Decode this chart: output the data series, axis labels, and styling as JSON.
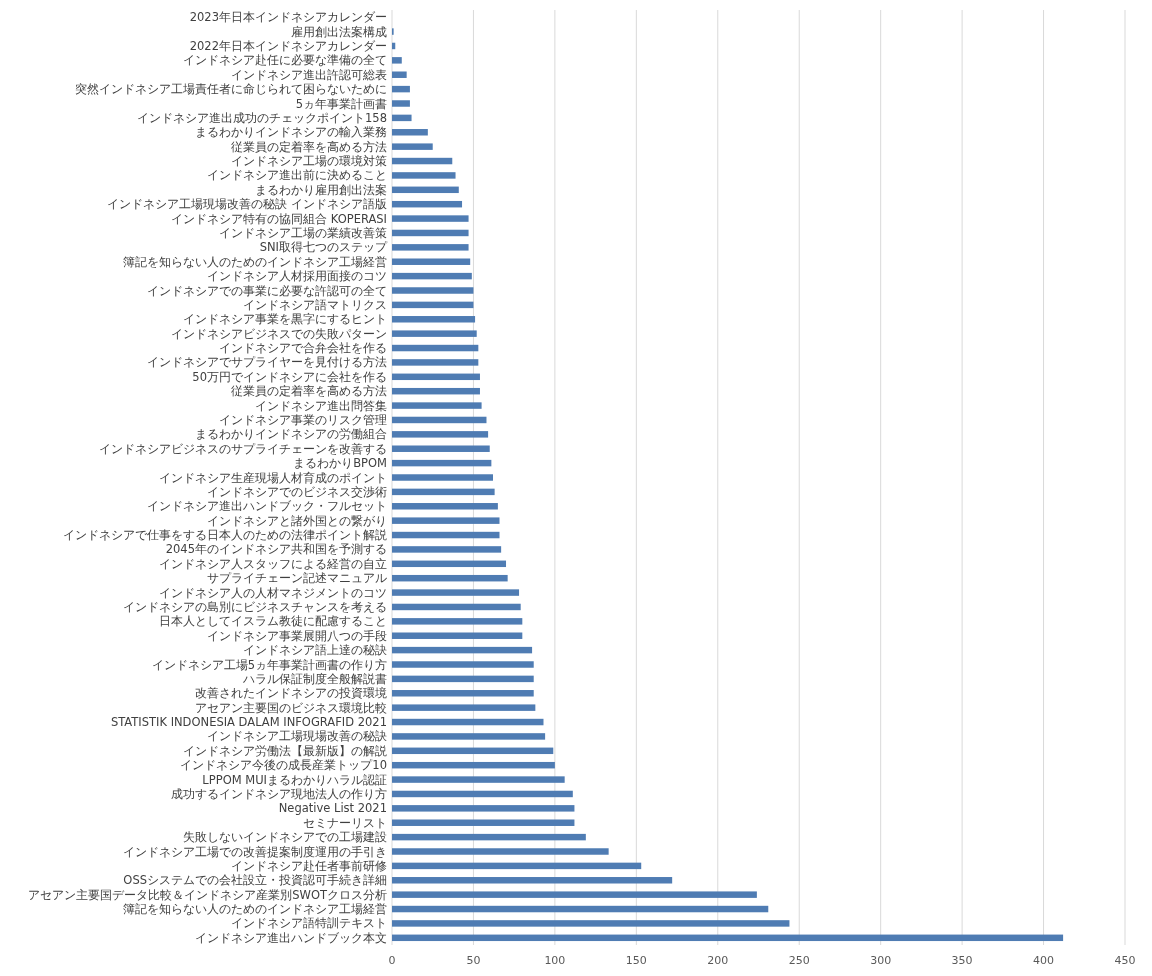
{
  "chart_data": {
    "type": "bar",
    "orientation": "horizontal",
    "color": "#4f7cb3",
    "grid": "x",
    "xlim": [
      0,
      450
    ],
    "xticks": [
      0,
      50,
      100,
      150,
      200,
      250,
      300,
      350,
      400,
      450
    ],
    "categories": [
      "2023年日本インドネシアカレンダー",
      "雇用創出法案構成",
      "2022年日本インドネシアカレンダー",
      "インドネシア赴任に必要な準備の全て",
      "インドネシア進出許認可総表",
      "突然インドネシア工場責任者に命じられて困らないために",
      "5ヵ年事業計画書",
      "インドネシア進出成功のチェックポイント158",
      "まるわかりインドネシアの輸入業務",
      "従業員の定着率を高める方法",
      "インドネシア工場の環境対策",
      "インドネシア進出前に決めること",
      "まるわかり雇用創出法案",
      "インドネシア工場現場改善の秘訣 インドネシア語版",
      "インドネシア特有の協同組合 KOPERASI",
      "インドネシア工場の業績改善策",
      "SNI取得七つのステップ",
      "簿記を知らない人のためのインドネシア工場経営",
      "インドネシア人材採用面接のコツ",
      "インドネシアでの事業に必要な許認可の全て",
      "インドネシア語マトリクス",
      "インドネシア事業を黒字にするヒント",
      "インドネシアビジネスでの失敗パターン",
      "インドネシアで合弁会社を作る",
      "インドネシアでサプライヤーを見付ける方法",
      "50万円でインドネシアに会社を作る",
      "従業員の定着率を高める方法",
      "インドネシア進出問答集",
      "インドネシア事業のリスク管理",
      "まるわかりインドネシアの労働組合",
      "インドネシアビジネスのサプライチェーンを改善する",
      "まるわかりBPOM",
      "インドネシア生産現場人材育成のポイント",
      "インドネシアでのビジネス交渉術",
      "インドネシア進出ハンドブック・フルセット",
      "インドネシアと諸外国との繋がり",
      "インドネシアで仕事をする日本人のための法律ポイント解説",
      "2045年のインドネシア共和国を予測する",
      "インドネシア人スタッフによる経営の自立",
      "サプライチェーン記述マニュアル",
      "インドネシア人の人材マネジメントのコツ",
      "インドネシアの島別にビジネスチャンスを考える",
      "日本人としてイスラム教徒に配慮すること",
      "インドネシア事業展開八つの手段",
      "インドネシア語上達の秘訣",
      "インドネシア工場5ヵ年事業計画書の作り方",
      "ハラル保証制度全般解説書",
      "改善されたインドネシアの投資環境",
      "アセアン主要国のビジネス環境比較",
      "STATISTIK INDONESIA DALAM INFOGRAFID 2021",
      "インドネシア工場現場改善の秘訣",
      "インドネシア労働法【最新版】の解説",
      "インドネシア今後の成長産業トップ10",
      "LPPOM MUIまるわかりハラル認証",
      "成功するインドネシア現地法人の作り方",
      "Negative List 2021",
      "セミナーリスト",
      "失敗しないインドネシアでの工場建設",
      "インドネシア工場での改善提案制度運用の手引き",
      "インドネシア赴任者事前研修",
      "OSSシステムでの会社設立・投資認可手続き詳細",
      "アセアン主要国データ比較＆インドネシア産業別SWOTクロス分析",
      "簿記を知らない人のためのインドネシア工場経営",
      "インドネシア語特訓テキスト",
      "インドネシア進出ハンドブック本文"
    ],
    "values": [
      0,
      1,
      2,
      6,
      9,
      11,
      11,
      12,
      22,
      25,
      37,
      39,
      41,
      43,
      47,
      47,
      47,
      48,
      49,
      50,
      50,
      51,
      52,
      53,
      53,
      54,
      54,
      55,
      58,
      59,
      60,
      61,
      62,
      63,
      65,
      66,
      66,
      67,
      70,
      71,
      78,
      79,
      80,
      80,
      86,
      87,
      87,
      87,
      88,
      93,
      94,
      99,
      100,
      106,
      111,
      112,
      112,
      119,
      133,
      153,
      172,
      224,
      231,
      244,
      412
    ]
  }
}
